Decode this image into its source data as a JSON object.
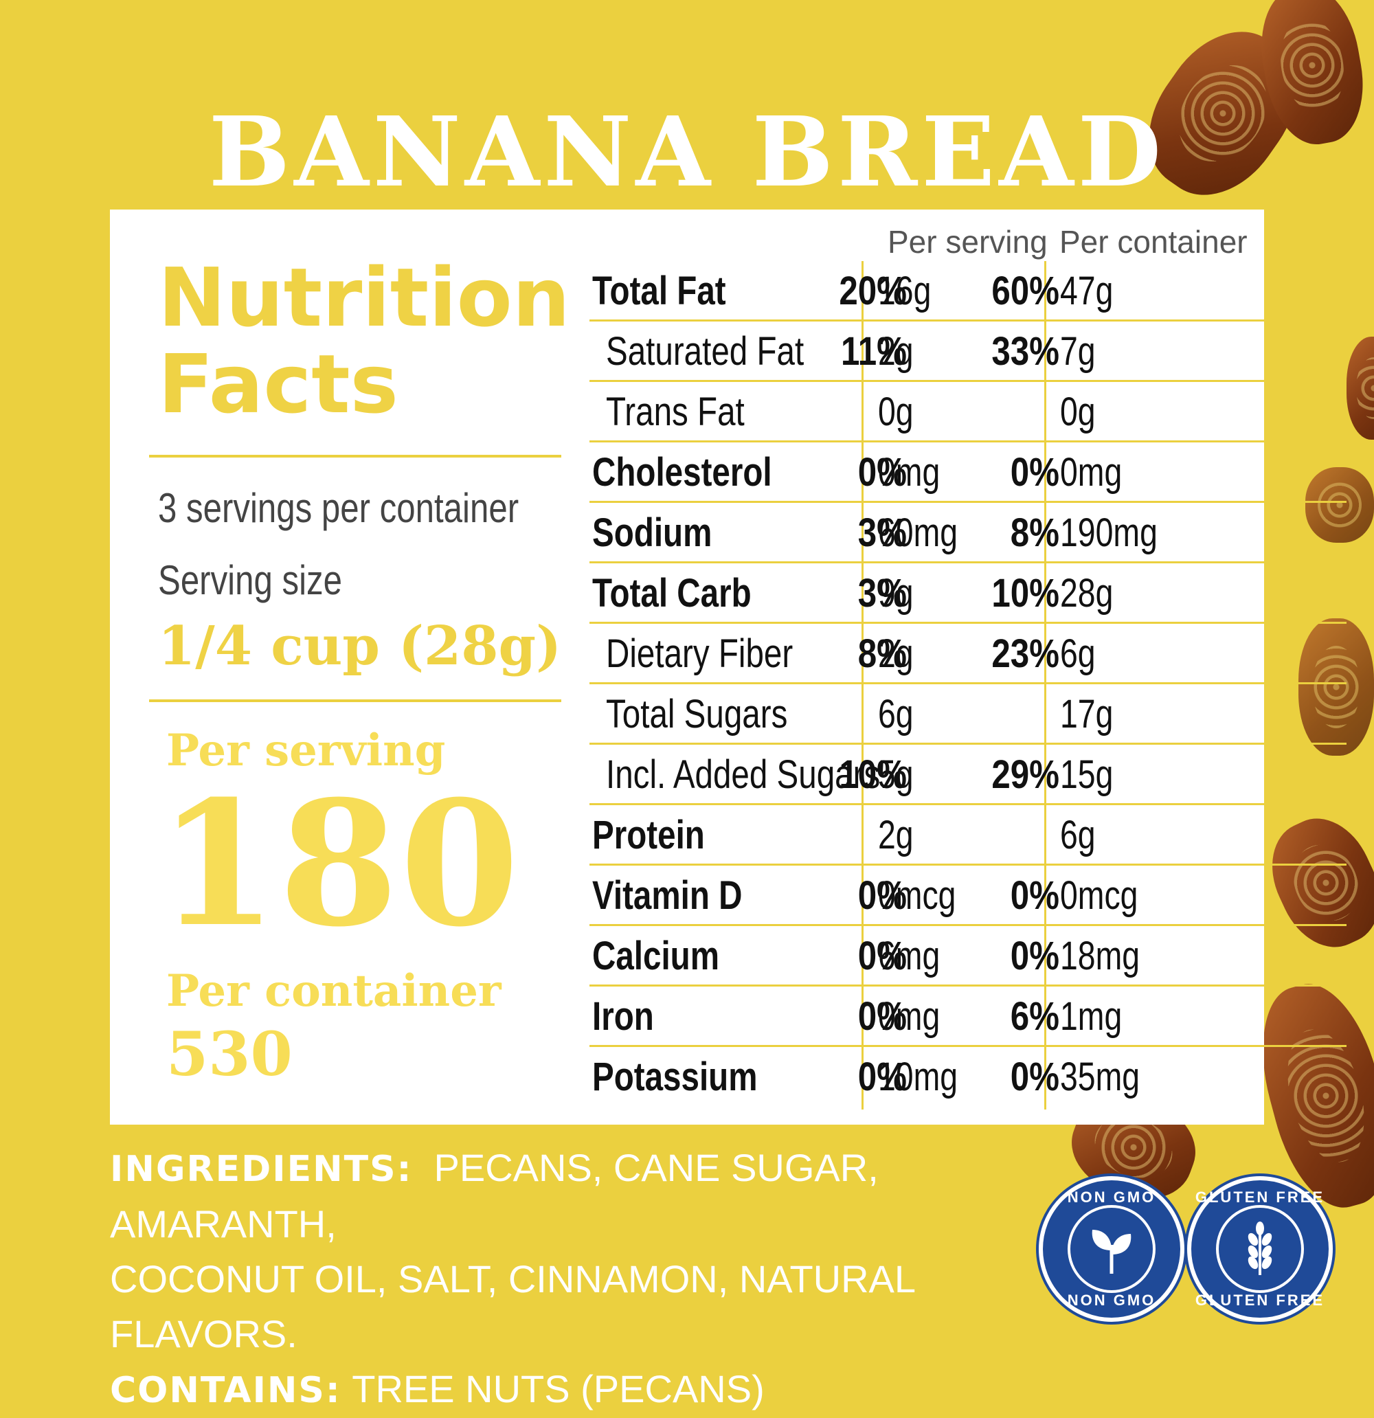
{
  "title": "BANANA BREAD",
  "panel": {
    "heading_line1": "Nutrition",
    "heading_line2": "Facts",
    "servings_per_container": "3 servings per container",
    "serving_size_label": "Serving size",
    "serving_size": "1/4 cup (28g)",
    "calories_per_serving_label": "Per serving",
    "calories_per_serving": "180",
    "calories_per_container_label": "Per container",
    "calories_per_container": "530"
  },
  "columns": {
    "per_serving": "Per serving",
    "per_container": "Per container"
  },
  "rows": [
    {
      "label": "Total Fat",
      "sub": false,
      "sv": "16g",
      "sp": "20%",
      "cv": "47g",
      "cp": "60%"
    },
    {
      "label": "Saturated Fat",
      "sub": true,
      "sv": "2g",
      "sp": "11%",
      "cv": "7g",
      "cp": "33%"
    },
    {
      "label": "Trans Fat",
      "sub": true,
      "sv": "0g",
      "sp": "",
      "cv": "0g",
      "cp": ""
    },
    {
      "label": "Cholesterol",
      "sub": false,
      "sv": "0mg",
      "sp": "0%",
      "cv": "0mg",
      "cp": "0%"
    },
    {
      "label": "Sodium",
      "sub": false,
      "sv": "60mg",
      "sp": "3%",
      "cv": "190mg",
      "cp": "8%"
    },
    {
      "label": "Total Carb",
      "sub": false,
      "sv": "9g",
      "sp": "3%",
      "cv": "28g",
      "cp": "10%"
    },
    {
      "label": "Dietary Fiber",
      "sub": true,
      "sv": "2g",
      "sp": "8%",
      "cv": "6g",
      "cp": "23%"
    },
    {
      "label": "Total Sugars",
      "sub": true,
      "sv": "6g",
      "sp": "",
      "cv": "17g",
      "cp": ""
    },
    {
      "label": "Incl. Added Sugars",
      "sub": true,
      "sv": "5g",
      "sp": "10%",
      "cv": "15g",
      "cp": "29%"
    },
    {
      "label": "Protein",
      "sub": false,
      "sv": "2g",
      "sp": "",
      "cv": "6g",
      "cp": ""
    },
    {
      "label": "Vitamin D",
      "sub": false,
      "sv": "0mcg",
      "sp": "0%",
      "cv": "0mcg",
      "cp": "0%"
    },
    {
      "label": "Calcium",
      "sub": false,
      "sv": "6mg",
      "sp": "0%",
      "cv": "18mg",
      "cp": "0%"
    },
    {
      "label": "Iron",
      "sub": false,
      "sv": "0mg",
      "sp": "0%",
      "cv": "1mg",
      "cp": "6%"
    },
    {
      "label": "Potassium",
      "sub": false,
      "sv": "10mg",
      "sp": "0%",
      "cv": "35mg",
      "cp": "0%"
    }
  ],
  "ingredients": {
    "label": "INGREDIENTS:",
    "text_line1": "PECANS, CANE SUGAR, AMARANTH,",
    "text_line2": "COCONUT OIL, SALT, CINNAMON, NATURAL FLAVORS.",
    "contains_label": "CONTAINS:",
    "contains_text": "TREE NUTS (PECANS)"
  },
  "badges": {
    "non_gmo": "NON GMO",
    "gluten_free": "GLUTEN FREE",
    "badge_color": "#1f4a98"
  },
  "colors": {
    "background": "#ebd03f",
    "accent_yellow": "#f7dd57"
  }
}
